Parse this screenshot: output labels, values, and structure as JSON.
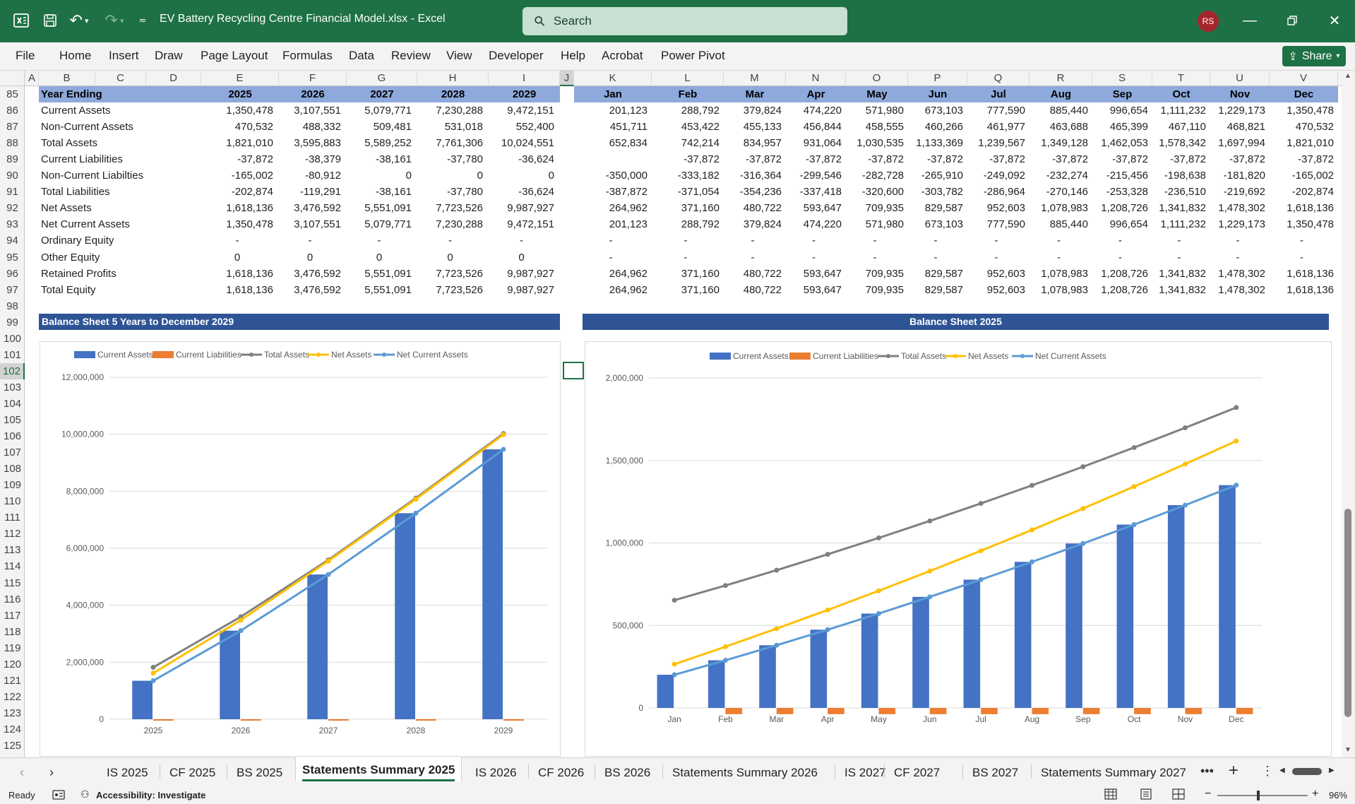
{
  "window": {
    "title": "EV Battery Recycling Centre Financial Model.xlsx  -  Excel",
    "search_placeholder": "Search",
    "avatar_initials": "RS"
  },
  "menu": [
    "File",
    "Home",
    "Insert",
    "Draw",
    "Page Layout",
    "Formulas",
    "Data",
    "Review",
    "View",
    "Developer",
    "Help",
    "Acrobat",
    "Power Pivot"
  ],
  "share_label": "Share",
  "columns": [
    "A",
    "B",
    "C",
    "D",
    "E",
    "F",
    "G",
    "H",
    "I",
    "J",
    "K",
    "L",
    "M",
    "N",
    "O",
    "P",
    "Q",
    "R",
    "S",
    "T",
    "U",
    "V"
  ],
  "rows": [
    "85",
    "86",
    "87",
    "88",
    "89",
    "90",
    "91",
    "92",
    "93",
    "94",
    "95",
    "96",
    "97",
    "98",
    "99",
    "100",
    "101",
    "102",
    "103",
    "104",
    "105",
    "106",
    "107",
    "108",
    "109",
    "110",
    "111",
    "112",
    "113",
    "114",
    "115",
    "116",
    "117",
    "118",
    "119",
    "120",
    "121",
    "122",
    "123",
    "124",
    "125"
  ],
  "table": {
    "header_label": "Year Ending",
    "annual_headers": [
      "2025",
      "2026",
      "2027",
      "2028",
      "2029"
    ],
    "monthly_headers": [
      "Jan",
      "Feb",
      "Mar",
      "Apr",
      "May",
      "Jun",
      "Jul",
      "Aug",
      "Sep",
      "Oct",
      "Nov",
      "Dec"
    ],
    "rows": [
      {
        "label": "Current Assets",
        "annual": [
          "1,350,478",
          "3,107,551",
          "5,079,771",
          "7,230,288",
          "9,472,151"
        ],
        "monthly": [
          "201,123",
          "288,792",
          "379,824",
          "474,220",
          "571,980",
          "673,103",
          "777,590",
          "885,440",
          "996,654",
          "1,111,232",
          "1,229,173",
          "1,350,478"
        ]
      },
      {
        "label": "Non-Current Assets",
        "annual": [
          "470,532",
          "488,332",
          "509,481",
          "531,018",
          "552,400"
        ],
        "monthly": [
          "451,711",
          "453,422",
          "455,133",
          "456,844",
          "458,555",
          "460,266",
          "461,977",
          "463,688",
          "465,399",
          "467,110",
          "468,821",
          "470,532"
        ]
      },
      {
        "label": "Total Assets",
        "annual": [
          "1,821,010",
          "3,595,883",
          "5,589,252",
          "7,761,306",
          "10,024,551"
        ],
        "monthly": [
          "652,834",
          "742,214",
          "834,957",
          "931,064",
          "1,030,535",
          "1,133,369",
          "1,239,567",
          "1,349,128",
          "1,462,053",
          "1,578,342",
          "1,697,994",
          "1,821,010"
        ]
      },
      {
        "label": "Current Liabilities",
        "annual": [
          "-37,872",
          "-38,379",
          "-38,161",
          "-37,780",
          "-36,624"
        ],
        "monthly": [
          "",
          "-37,872",
          "-37,872",
          "-37,872",
          "-37,872",
          "-37,872",
          "-37,872",
          "-37,872",
          "-37,872",
          "-37,872",
          "-37,872",
          "-37,872"
        ]
      },
      {
        "label": "Non-Current Liabilties",
        "annual": [
          "-165,002",
          "-80,912",
          "0",
          "0",
          "0"
        ],
        "monthly": [
          "-350,000",
          "-333,182",
          "-316,364",
          "-299,546",
          "-282,728",
          "-265,910",
          "-249,092",
          "-232,274",
          "-215,456",
          "-198,638",
          "-181,820",
          "-165,002"
        ]
      },
      {
        "label": "Total Liabilities",
        "annual": [
          "-202,874",
          "-119,291",
          "-38,161",
          "-37,780",
          "-36,624"
        ],
        "monthly": [
          "-387,872",
          "-371,054",
          "-354,236",
          "-337,418",
          "-320,600",
          "-303,782",
          "-286,964",
          "-270,146",
          "-253,328",
          "-236,510",
          "-219,692",
          "-202,874"
        ]
      },
      {
        "label": "Net Assets",
        "annual": [
          "1,618,136",
          "3,476,592",
          "5,551,091",
          "7,723,526",
          "9,987,927"
        ],
        "monthly": [
          "264,962",
          "371,160",
          "480,722",
          "593,647",
          "709,935",
          "829,587",
          "952,603",
          "1,078,983",
          "1,208,726",
          "1,341,832",
          "1,478,302",
          "1,618,136"
        ]
      },
      {
        "label": "Net Current Assets",
        "annual": [
          "1,350,478",
          "3,107,551",
          "5,079,771",
          "7,230,288",
          "9,472,151"
        ],
        "monthly": [
          "201,123",
          "288,792",
          "379,824",
          "474,220",
          "571,980",
          "673,103",
          "777,590",
          "885,440",
          "996,654",
          "1,111,232",
          "1,229,173",
          "1,350,478"
        ]
      },
      {
        "label": "Ordinary Equity",
        "annual": [
          "-",
          "-",
          "-",
          "-",
          "-"
        ],
        "monthly": [
          "-",
          "-",
          "-",
          "-",
          "-",
          "-",
          "-",
          "-",
          "-",
          "-",
          "-",
          "-"
        ]
      },
      {
        "label": "Other Equity",
        "annual": [
          "0",
          "0",
          "0",
          "0",
          "0"
        ],
        "monthly": [
          "-",
          "-",
          "-",
          "-",
          "-",
          "-",
          "-",
          "-",
          "-",
          "-",
          "-",
          "-"
        ]
      },
      {
        "label": "Retained Profits",
        "annual": [
          "1,618,136",
          "3,476,592",
          "5,551,091",
          "7,723,526",
          "9,987,927"
        ],
        "monthly": [
          "264,962",
          "371,160",
          "480,722",
          "593,647",
          "709,935",
          "829,587",
          "952,603",
          "1,078,983",
          "1,208,726",
          "1,341,832",
          "1,478,302",
          "1,618,136"
        ]
      },
      {
        "label": "Total Equity",
        "annual": [
          "1,618,136",
          "3,476,592",
          "5,551,091",
          "7,723,526",
          "9,987,927"
        ],
        "monthly": [
          "264,962",
          "371,160",
          "480,722",
          "593,647",
          "709,935",
          "829,587",
          "952,603",
          "1,078,983",
          "1,208,726",
          "1,341,832",
          "1,478,302",
          "1,618,136"
        ]
      }
    ]
  },
  "chart_titles": {
    "left": "Balance Sheet 5 Years to December 2029",
    "right": "Balance Sheet 2025"
  },
  "chart_data": [
    {
      "type": "bar",
      "title": "Balance Sheet 5 Years to December 2029",
      "categories": [
        "2025",
        "2026",
        "2027",
        "2028",
        "2029"
      ],
      "ylim": [
        0,
        12000000
      ],
      "yticks": [
        "0",
        "2,000,000",
        "4,000,000",
        "6,000,000",
        "8,000,000",
        "10,000,000",
        "12,000,000"
      ],
      "legend_position": "top",
      "series": [
        {
          "name": "Current Assets",
          "kind": "bar",
          "color": "#4472c4",
          "values": [
            1350478,
            3107551,
            5079771,
            7230288,
            9472151
          ]
        },
        {
          "name": "Current Liabilities",
          "kind": "bar",
          "color": "#ed7d31",
          "values": [
            -37872,
            -38379,
            -38161,
            -37780,
            -36624
          ]
        },
        {
          "name": "Total Assets",
          "kind": "line",
          "color": "#7f7f7f",
          "values": [
            1821010,
            3595883,
            5589252,
            7761306,
            10024551
          ]
        },
        {
          "name": "Net Assets",
          "kind": "line",
          "color": "#ffc000",
          "values": [
            1618136,
            3476592,
            5551091,
            7723526,
            9987927
          ]
        },
        {
          "name": "Net Current Assets",
          "kind": "line",
          "color": "#5b9bd5",
          "values": [
            1350478,
            3107551,
            5079771,
            7230288,
            9472151
          ]
        }
      ]
    },
    {
      "type": "bar",
      "title": "Balance Sheet 2025",
      "categories": [
        "Jan",
        "Feb",
        "Mar",
        "Apr",
        "May",
        "Jun",
        "Jul",
        "Aug",
        "Sep",
        "Oct",
        "Nov",
        "Dec"
      ],
      "ylim": [
        0,
        2000000
      ],
      "yticks": [
        "0",
        "500,000",
        "1,000,000",
        "1,500,000",
        "2,000,000"
      ],
      "legend_position": "top",
      "series": [
        {
          "name": "Current Assets",
          "kind": "bar",
          "color": "#4472c4",
          "values": [
            201123,
            288792,
            379824,
            474220,
            571980,
            673103,
            777590,
            885440,
            996654,
            1111232,
            1229173,
            1350478
          ]
        },
        {
          "name": "Current Liabilities",
          "kind": "bar",
          "color": "#ed7d31",
          "values": [
            0,
            -37872,
            -37872,
            -37872,
            -37872,
            -37872,
            -37872,
            -37872,
            -37872,
            -37872,
            -37872,
            -37872
          ]
        },
        {
          "name": "Total Assets",
          "kind": "line",
          "color": "#7f7f7f",
          "values": [
            652834,
            742214,
            834957,
            931064,
            1030535,
            1133369,
            1239567,
            1349128,
            1462053,
            1578342,
            1697994,
            1821010
          ]
        },
        {
          "name": "Net Assets",
          "kind": "line",
          "color": "#ffc000",
          "values": [
            264962,
            371160,
            480722,
            593647,
            709935,
            829587,
            952603,
            1078983,
            1208726,
            1341832,
            1478302,
            1618136
          ]
        },
        {
          "name": "Net Current Assets",
          "kind": "line",
          "color": "#5b9bd5",
          "values": [
            201123,
            288792,
            379824,
            474220,
            571980,
            673103,
            777590,
            885440,
            996654,
            1111232,
            1229173,
            1350478
          ]
        }
      ]
    }
  ],
  "tabs": [
    "IS 2025",
    "CF 2025",
    "BS 2025",
    "Statements Summary 2025",
    "IS 2026",
    "CF 2026",
    "BS 2026",
    "Statements Summary 2026",
    "IS 2027",
    "CF 2027",
    "BS 2027",
    "Statements Summary 2027"
  ],
  "active_tab": "Statements Summary 2025",
  "status": {
    "ready": "Ready",
    "accessibility": "Accessibility: Investigate",
    "zoom": "96%"
  },
  "colors": {
    "excel_green": "#1e7145",
    "header_band": "#8ea9db",
    "chart_title_bar": "#2f5496"
  }
}
